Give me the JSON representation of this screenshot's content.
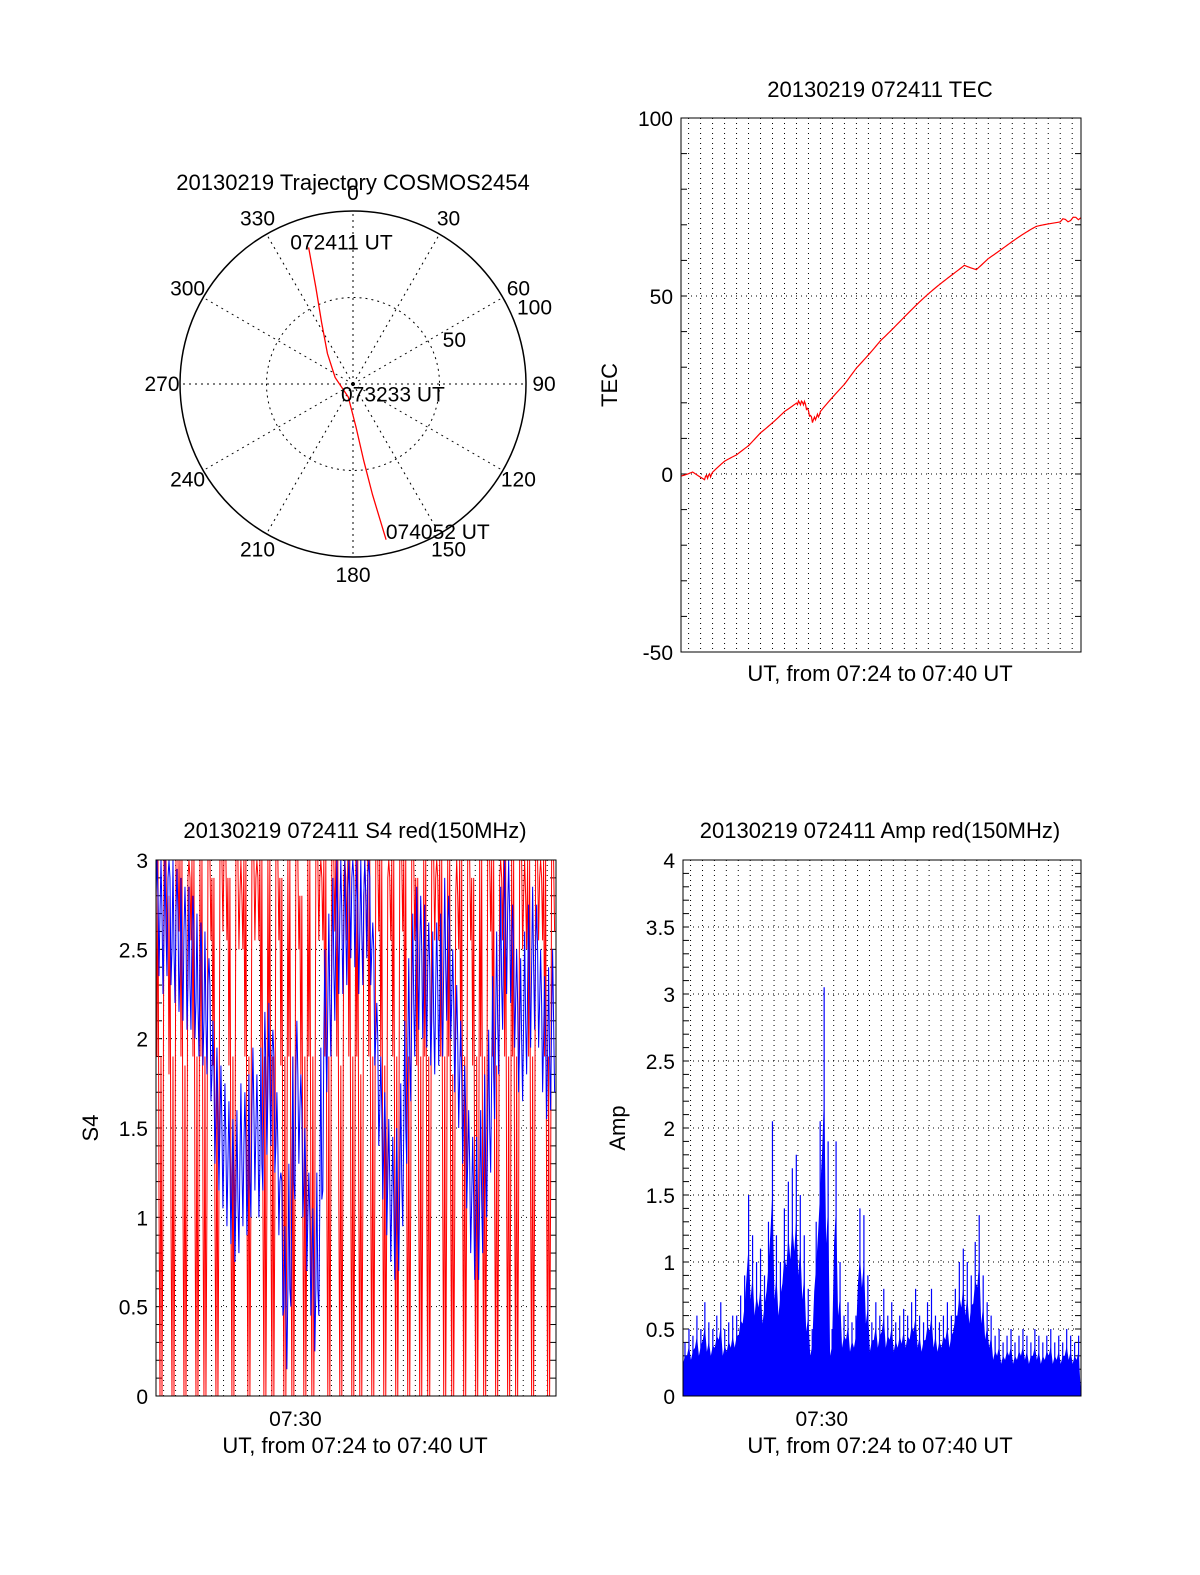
{
  "chart_data": [
    {
      "id": "trajectory",
      "type": "polar",
      "title": "20130219 Trajectory COSMOS2454",
      "angle_labels": [
        "0",
        "30",
        "60",
        "90",
        "120",
        "150",
        "180",
        "210",
        "240",
        "270",
        "300",
        "330"
      ],
      "radial_labels": [
        "50",
        "100"
      ],
      "radial_ticks": [
        50,
        100
      ],
      "rlim": [
        0,
        100
      ],
      "grid": true,
      "series": [
        {
          "color": "#ff0000",
          "points": [
            {
              "az": 342,
              "r": 83
            },
            {
              "az": 339,
              "r": 60
            },
            {
              "az": 333,
              "r": 40
            },
            {
              "az": 320,
              "r": 23
            },
            {
              "az": 290,
              "r": 11
            },
            {
              "az": 200,
              "r": 8
            },
            {
              "az": 176,
              "r": 25
            },
            {
              "az": 172,
              "r": 45
            },
            {
              "az": 170,
              "r": 65
            },
            {
              "az": 168,
              "r": 92
            }
          ]
        }
      ],
      "annotations": [
        {
          "text": "072411 UT",
          "az": 347,
          "r": 84
        },
        {
          "text": "073233 UT",
          "az": 120,
          "r": 12
        },
        {
          "text": "074052 UT",
          "az": 157,
          "r": 93
        }
      ]
    },
    {
      "id": "tec",
      "type": "line",
      "title": "20130219 072411 TEC",
      "xlabel": "UT, from 07:24 to 07:40 UT",
      "ylabel": "TEC",
      "xlim": [
        "07:24:11",
        "07:40:52"
      ],
      "ylim": [
        -50,
        100
      ],
      "yticks": [
        "-50",
        "0",
        "50",
        "100"
      ],
      "grid": true,
      "series": [
        {
          "color": "#ff0000",
          "points": [
            [
              "07:24:11",
              0
            ],
            [
              "07:24:40",
              1
            ],
            [
              "07:25:10",
              -1
            ],
            [
              "07:25:30",
              0
            ],
            [
              "07:26:00",
              3
            ],
            [
              "07:26:30",
              5
            ],
            [
              "07:27:00",
              8
            ],
            [
              "07:27:30",
              12
            ],
            [
              "07:28:00",
              15
            ],
            [
              "07:28:30",
              18
            ],
            [
              "07:29:00",
              20
            ],
            [
              "07:29:20",
              20
            ],
            [
              "07:29:40",
              15
            ],
            [
              "07:30:00",
              17
            ],
            [
              "07:30:30",
              21
            ],
            [
              "07:31:00",
              25
            ],
            [
              "07:31:30",
              30
            ],
            [
              "07:32:00",
              34
            ],
            [
              "07:32:30",
              38
            ],
            [
              "07:33:00",
              41
            ],
            [
              "07:33:30",
              44
            ],
            [
              "07:34:00",
              47
            ],
            [
              "07:34:30",
              50
            ],
            [
              "07:35:00",
              53
            ],
            [
              "07:35:30",
              56
            ],
            [
              "07:36:00",
              59
            ],
            [
              "07:36:30",
              58
            ],
            [
              "07:37:00",
              61
            ],
            [
              "07:37:30",
              63
            ],
            [
              "07:38:00",
              65
            ],
            [
              "07:38:30",
              67
            ],
            [
              "07:39:00",
              69
            ],
            [
              "07:39:30",
              70
            ],
            [
              "07:40:00",
              71
            ],
            [
              "07:40:52",
              72
            ]
          ]
        }
      ]
    },
    {
      "id": "s4",
      "type": "line",
      "title": "20130219 072411 S4 red(150MHz)",
      "xlabel": "UT, from 07:24 to 07:40 UT",
      "ylabel": "S4",
      "xlim": [
        "07:24:11",
        "07:40:52"
      ],
      "ylim": [
        0,
        3
      ],
      "xticks": [
        "07:30"
      ],
      "yticks": [
        "0",
        "0.5",
        "1",
        "1.5",
        "2",
        "2.5",
        "3"
      ],
      "grid": true,
      "series": [
        {
          "color": "#0000ff",
          "values_every_10s": [
            2.8,
            2.7,
            2.6,
            2.9,
            2.5,
            2.7,
            2.4,
            2.6,
            2.3,
            2.6,
            2.2,
            2.4,
            2.1,
            2.3,
            1.8,
            1.6,
            1.5,
            1.4,
            1.3,
            1.2,
            1.1,
            1.3,
            1.4,
            1.2,
            1.6,
            1.5,
            1.3,
            1.8,
            1.7,
            1.9,
            1.4,
            1.2,
            0.5,
            0.6,
            1.2,
            1.8,
            1.6,
            1.2,
            1.0,
            0.7,
            0.6,
            1.1,
            2.0,
            2.2,
            2.4,
            2.6,
            2.7,
            2.6,
            2.8,
            2.9,
            2.7,
            2.6,
            2.8,
            2.9,
            2.5,
            2.0,
            1.6,
            1.4,
            1.2,
            1.1,
            1.0,
            1.2,
            1.5,
            1.9,
            2.2,
            2.4,
            2.5,
            2.3,
            2.4,
            2.1,
            2.3,
            2.2,
            2.4,
            2.6,
            2.2,
            2.0,
            1.8,
            1.6,
            1.3,
            1.1,
            1.0,
            1.1,
            1.3,
            1.5,
            1.8,
            2.1,
            2.3,
            2.6,
            2.7,
            2.5,
            2.2,
            2.0,
            2.1,
            2.3,
            2.4,
            2.5,
            2.2,
            2.0,
            1.9,
            2.1
          ]
        },
        {
          "color": "#ff0000",
          "values_every_10s": [
            3.0,
            0.0,
            3.0,
            2.8,
            0.0,
            3.0,
            3.0,
            0.0,
            2.9,
            3.0,
            0.0,
            3.0,
            0.0,
            3.0,
            2.9,
            0.0,
            3.0,
            3.0,
            2.9,
            0.0,
            3.0,
            2.8,
            3.0,
            0.0,
            3.0,
            2.9,
            3.0,
            0.0,
            3.0,
            0.0,
            3.0,
            2.9,
            0.0,
            3.0,
            0.0,
            3.0,
            2.8,
            0.0,
            3.0,
            0.0,
            3.0,
            2.9,
            3.0,
            0.0,
            3.0,
            3.0,
            0.0,
            2.9,
            3.0,
            0.0,
            3.0,
            0.0,
            2.8,
            3.0,
            0.0,
            3.0,
            3.0,
            0.0,
            2.9,
            3.0,
            0.0,
            3.0,
            3.0,
            0.0,
            3.0,
            2.9,
            0.0,
            3.0,
            0.0,
            3.0,
            2.9,
            3.0,
            0.0,
            3.0,
            0.0,
            2.8,
            3.0,
            0.0,
            3.0,
            2.9,
            0.0,
            3.0,
            0.0,
            3.0,
            3.0,
            0.0,
            2.9,
            3.0,
            0.0,
            3.0,
            0.0,
            3.0,
            2.8,
            3.0,
            0.0,
            3.0,
            2.9,
            3.0,
            0.0,
            3.0
          ]
        }
      ]
    },
    {
      "id": "amp",
      "type": "bar",
      "title": "20130219 072411 Amp red(150MHz)",
      "xlabel": "UT, from 07:24 to 07:40 UT",
      "ylabel": "Amp",
      "xlim": [
        "07:24:11",
        "07:40:52"
      ],
      "ylim": [
        0,
        4
      ],
      "xticks": [
        "07:30"
      ],
      "yticks": [
        "0",
        "0.5",
        "1",
        "1.5",
        "2",
        "2.5",
        "3",
        "3.5",
        "4"
      ],
      "grid": true,
      "series": [
        {
          "color": "#0000ff",
          "values_every_10s": [
            0.4,
            0.5,
            0.45,
            0.6,
            0.5,
            0.7,
            0.55,
            0.5,
            0.6,
            0.7,
            0.5,
            0.55,
            0.6,
            0.6,
            0.75,
            0.9,
            1.5,
            1.2,
            1.0,
            1.1,
            0.9,
            1.3,
            2.05,
            1.2,
            1.0,
            1.4,
            1.6,
            1.7,
            1.8,
            1.5,
            1.2,
            0.8,
            0.5,
            1.3,
            2.05,
            3.05,
            1.9,
            0.5,
            1.9,
            1.0,
            0.6,
            0.7,
            0.55,
            0.6,
            1.4,
            1.35,
            0.9,
            0.55,
            0.7,
            0.6,
            0.8,
            0.6,
            0.7,
            0.55,
            0.6,
            0.65,
            0.6,
            0.7,
            0.8,
            0.6,
            0.55,
            0.7,
            0.8,
            0.6,
            0.55,
            0.6,
            0.7,
            0.6,
            0.8,
            1.0,
            1.1,
            1.0,
            0.9,
            1.15,
            1.35,
            0.9,
            0.7,
            0.6,
            0.45,
            0.5,
            0.4,
            0.45,
            0.5,
            0.4,
            0.45,
            0.5,
            0.45,
            0.4,
            0.5,
            0.45,
            0.4,
            0.45,
            0.5,
            0.4,
            0.45,
            0.4,
            0.5,
            0.45,
            0.4,
            0.45
          ]
        }
      ]
    }
  ]
}
